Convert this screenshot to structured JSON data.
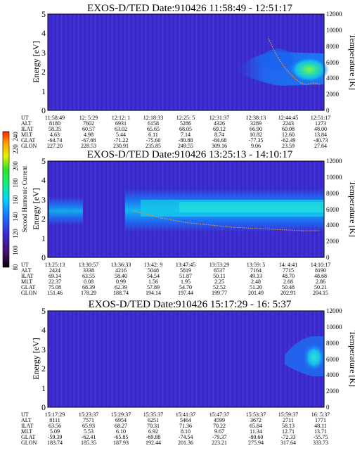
{
  "chart_data": [
    {
      "type": "heatmap",
      "title": "EXOS-D/TED   Date:910426   11:58:49 - 12:51:17",
      "ylabel": "Energy [eV]",
      "y2label": "Temperature [K]",
      "ylim": [
        0,
        5
      ],
      "y2lim": [
        0,
        12000
      ],
      "yticks": [
        "0",
        "1",
        "2",
        "3",
        "4",
        "5"
      ],
      "y2ticks": [
        "0",
        "2000",
        "4000",
        "6000",
        "8000",
        "10000",
        "12000"
      ],
      "rows": [
        {
          "label": "UT",
          "values": [
            "11:58:49",
            "12: 5:29",
            "12:12: 1",
            "12:18:33",
            "12:25: 5",
            "12:31:37",
            "12:38:13",
            "12:44:45",
            "12:51:17"
          ]
        },
        {
          "label": "ALT",
          "values": [
            "8180",
            "7602",
            "6931",
            "6158",
            "5286",
            "4326",
            "3289",
            "2243",
            "1273"
          ]
        },
        {
          "label": "ILAT",
          "values": [
            "58.35",
            "60.57",
            "63.02",
            "65.65",
            "68.05",
            "69.12",
            "66.90",
            "60.08",
            "48.00"
          ]
        },
        {
          "label": "MLT",
          "values": [
            "4.63",
            "4.98",
            "5.44",
            "6.11",
            "7.14",
            "8.74",
            "10.82",
            "12.60",
            "13.84"
          ]
        },
        {
          "label": "GLAT",
          "values": [
            "-64.74",
            "-67.68",
            "-71.22",
            "-75.60",
            "-80.88",
            "-84.68",
            "-77.35",
            "-62.49",
            "-40.73"
          ]
        },
        {
          "label": "GLON",
          "values": [
            "227.20",
            "228.53",
            "230.91",
            "235.85",
            "249.55",
            "309.16",
            "9.06",
            "23.59",
            "27.64"
          ]
        }
      ]
    },
    {
      "type": "heatmap",
      "title": "EXOS-D/TED   Date:910426   13:25:13 - 14:10:17",
      "ylabel": "Energy [eV]",
      "y2label": "Temperature [K]",
      "ylim": [
        0,
        5
      ],
      "y2lim": [
        0,
        12000
      ],
      "yticks": [
        "0",
        "1",
        "2",
        "3",
        "4",
        "5"
      ],
      "y2ticks": [
        "0",
        "2000",
        "4000",
        "6000",
        "8000",
        "10000",
        "12000"
      ],
      "rows": [
        {
          "label": "UT",
          "values": [
            "13:25:13",
            "13:30:57",
            "13:36:33",
            "13:42: 9",
            "13:47:45",
            "13:53:29",
            "13:59: 5",
            "14: 4:41",
            "14:10:17"
          ]
        },
        {
          "label": "ALT",
          "values": [
            "2424",
            "3338",
            "4216",
            "5048",
            "5819",
            "6537",
            "7164",
            "7715",
            "8190"
          ]
        },
        {
          "label": "ILAT",
          "values": [
            "69.14",
            "63.55",
            "58.40",
            "54.54",
            "51.87",
            "50.11",
            "49.13",
            "48.70",
            "48.68"
          ]
        },
        {
          "label": "MLT",
          "values": [
            "22.37",
            "0.08",
            "0.99",
            "1.56",
            "1.95",
            "2.25",
            "2.48",
            "2.68",
            "2.86"
          ]
        },
        {
          "label": "GLAT",
          "values": [
            "75.08",
            "68.39",
            "62.39",
            "57.89",
            "54.70",
            "52.52",
            "51.20",
            "50.48",
            "50.21"
          ]
        },
        {
          "label": "GLON",
          "values": [
            "151.46",
            "178.29",
            "188.74",
            "194.14",
            "197.44",
            "199.77",
            "201.49",
            "202.91",
            "204.15"
          ]
        }
      ]
    },
    {
      "type": "heatmap",
      "title": "EXOS-D/TED   Date:910426   15:17:29 - 16: 5:37",
      "ylabel": "Energy [eV]",
      "y2label": "Temperature [K]",
      "ylim": [
        0,
        5
      ],
      "y2lim": [
        0,
        12000
      ],
      "yticks": [
        "0",
        "1",
        "2",
        "3",
        "4",
        "5"
      ],
      "y2ticks": [
        "0",
        "2000",
        "4000",
        "6000",
        "8000",
        "10000",
        "12000"
      ],
      "rows": [
        {
          "label": "UT",
          "values": [
            "15:17:29",
            "15:23:37",
            "15:29:37",
            "15:35:37",
            "15:41:37",
            "15:47:37",
            "15:53:37",
            "15:59:37",
            "16: 5:37"
          ]
        },
        {
          "label": "ALT",
          "values": [
            "8111",
            "7571",
            "6954",
            "6251",
            "5464",
            "4599",
            "3672",
            "2711",
            "1771"
          ]
        },
        {
          "label": "ILAT",
          "values": [
            "63.56",
            "65.93",
            "68.27",
            "70.31",
            "71.36",
            "70.22",
            "65.84",
            "58.13",
            "48.11"
          ]
        },
        {
          "label": "MLT",
          "values": [
            "5.09",
            "5.53",
            "6.10",
            "6.92",
            "8.10",
            "9.67",
            "11.34",
            "12.71",
            "13.71"
          ]
        },
        {
          "label": "GLAT",
          "values": [
            "-59.39",
            "-62.41",
            "-65.85",
            "-69.88",
            "-74.54",
            "-79.37",
            "-80.60",
            "-72.33",
            "-55.75"
          ]
        },
        {
          "label": "GLON",
          "values": [
            "183.74",
            "185.35",
            "187.93",
            "192.44",
            "201.36",
            "223.21",
            "275.94",
            "317.64",
            "333.73"
          ]
        }
      ]
    }
  ],
  "colorbar": {
    "label": "Second Harmonic Current",
    "ticks": [
      "80",
      "100",
      "120",
      "140",
      "160",
      "180",
      "200",
      "220",
      "240"
    ],
    "colors": [
      "#000000",
      "#4a0f6e",
      "#3a2bd0",
      "#1b74ff",
      "#00d2ff",
      "#14f07a",
      "#2ee02a",
      "#e6f000",
      "#ff9a00",
      "#ff2000"
    ]
  },
  "colors": {
    "background": "#3d2dcf",
    "band": "#1d6cf2",
    "band_core": "#16c9e8",
    "hot": "#31d98a",
    "trace": "#ff9a20"
  }
}
